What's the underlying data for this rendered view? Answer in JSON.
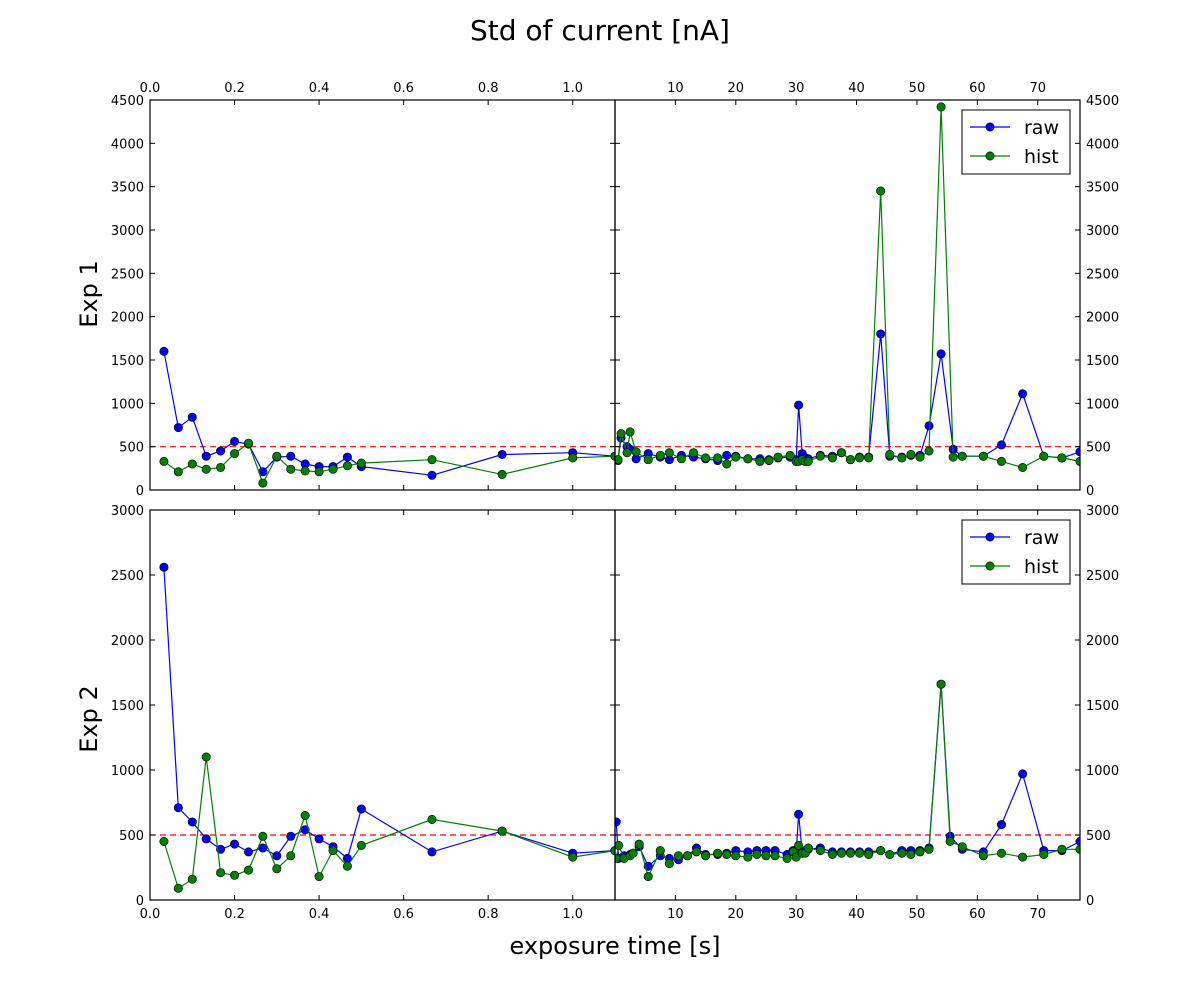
{
  "figure": {
    "suptitle": "Std of current [nA]",
    "xlabel": "exposure time [s]",
    "row_labels": [
      "Exp 1",
      "Exp 2"
    ]
  },
  "colors": {
    "raw": "#0000ff",
    "hist": "#008000",
    "ref": "#ff0000"
  },
  "chart_data": [
    {
      "type": "line",
      "id": "exp1-left",
      "xlim": [
        0,
        1.1
      ],
      "ylim": [
        0,
        4500
      ],
      "xticks": [
        0.0,
        0.2,
        0.4,
        0.6,
        0.8,
        1.0
      ],
      "xtick_labels": [
        "0.0",
        "0.2",
        "0.4",
        "0.6",
        "0.8",
        "1.0"
      ],
      "yticks": [
        0,
        500,
        1000,
        1500,
        2000,
        2500,
        3000,
        3500,
        4000,
        4500
      ],
      "ytick_labels": [
        "0",
        "500",
        "1000",
        "1500",
        "2000",
        "2500",
        "3000",
        "3500",
        "4000",
        "4500"
      ],
      "reference_line": 500,
      "series": [
        {
          "key": "raw",
          "x": [
            0.033,
            0.067,
            0.1,
            0.133,
            0.167,
            0.2,
            0.233,
            0.267,
            0.3,
            0.333,
            0.367,
            0.4,
            0.433,
            0.467,
            0.5,
            0.667,
            0.833,
            1.0,
            1.1
          ],
          "y": [
            1600,
            720,
            840,
            390,
            450,
            560,
            530,
            210,
            380,
            390,
            300,
            270,
            270,
            380,
            270,
            170,
            410,
            430,
            390
          ]
        },
        {
          "key": "hist",
          "x": [
            0.033,
            0.067,
            0.1,
            0.133,
            0.167,
            0.2,
            0.233,
            0.267,
            0.3,
            0.333,
            0.367,
            0.4,
            0.433,
            0.467,
            0.5,
            0.667,
            0.833,
            1.0,
            1.1
          ],
          "y": [
            330,
            210,
            300,
            240,
            260,
            420,
            540,
            80,
            390,
            240,
            220,
            210,
            240,
            280,
            310,
            350,
            180,
            370,
            390
          ]
        }
      ]
    },
    {
      "type": "line",
      "id": "exp1-right",
      "xlim": [
        0,
        77
      ],
      "ylim": [
        0,
        4500
      ],
      "xticks": [
        10,
        20,
        30,
        40,
        50,
        60,
        70
      ],
      "xtick_labels": [
        "10",
        "20",
        "30",
        "40",
        "50",
        "60",
        "70"
      ],
      "yticks": [
        0,
        500,
        1000,
        1500,
        2000,
        2500,
        3000,
        3500,
        4000,
        4500
      ],
      "ytick_labels": [
        "0",
        "500",
        "1000",
        "1500",
        "2000",
        "2500",
        "3000",
        "3500",
        "4000",
        "4500"
      ],
      "legend": [
        "raw",
        "hist"
      ],
      "legend_position": "top-right",
      "reference_line": 500,
      "series": [
        {
          "key": "raw",
          "x": [
            0.5,
            1,
            2,
            2.5,
            3.5,
            5.5,
            7.5,
            9,
            11,
            13,
            15,
            17,
            18.5,
            20,
            22,
            24,
            25.5,
            27,
            29,
            30,
            30.4,
            31,
            31.5,
            32,
            34,
            36,
            37.5,
            39,
            40.5,
            42,
            44,
            45.5,
            47.5,
            49,
            50.5,
            52,
            54,
            56,
            57.5,
            61,
            64,
            67.5,
            71,
            74,
            77
          ],
          "y": [
            340,
            600,
            500,
            470,
            360,
            420,
            380,
            350,
            400,
            380,
            360,
            340,
            400,
            390,
            360,
            360,
            350,
            370,
            380,
            350,
            980,
            420,
            370,
            360,
            400,
            390,
            430,
            350,
            380,
            380,
            1800,
            390,
            380,
            400,
            400,
            740,
            1570,
            470,
            390,
            390,
            520,
            1110,
            390,
            370,
            440
          ]
        },
        {
          "key": "hist",
          "x": [
            0.5,
            1,
            2,
            2.5,
            3.5,
            5.5,
            7.5,
            9,
            11,
            13,
            15,
            17,
            18.5,
            20,
            22,
            24,
            25.5,
            27,
            29,
            30,
            30.4,
            31,
            31.5,
            32,
            34,
            36,
            37.5,
            39,
            40.5,
            42,
            44,
            45.5,
            47.5,
            49,
            50.5,
            52,
            54,
            56,
            57.5,
            61,
            64,
            67.5,
            71,
            74,
            77
          ],
          "y": [
            350,
            650,
            430,
            670,
            440,
            350,
            400,
            430,
            360,
            430,
            370,
            370,
            300,
            380,
            360,
            330,
            340,
            380,
            400,
            330,
            330,
            350,
            330,
            330,
            390,
            370,
            430,
            350,
            370,
            370,
            3450,
            410,
            370,
            410,
            380,
            450,
            4420,
            380,
            390,
            390,
            330,
            260,
            390,
            370,
            330
          ]
        }
      ]
    },
    {
      "type": "line",
      "id": "exp2-left",
      "xlim": [
        0,
        1.1
      ],
      "ylim": [
        0,
        3000
      ],
      "xticks": [
        0.0,
        0.2,
        0.4,
        0.6,
        0.8,
        1.0
      ],
      "xtick_labels": [
        "0.0",
        "0.2",
        "0.4",
        "0.6",
        "0.8",
        "1.0"
      ],
      "yticks": [
        0,
        500,
        1000,
        1500,
        2000,
        2500,
        3000
      ],
      "ytick_labels": [
        "0",
        "500",
        "1000",
        "1500",
        "2000",
        "2500",
        "3000"
      ],
      "reference_line": 500,
      "series": [
        {
          "key": "raw",
          "x": [
            0.033,
            0.067,
            0.1,
            0.133,
            0.167,
            0.2,
            0.233,
            0.267,
            0.3,
            0.333,
            0.367,
            0.4,
            0.433,
            0.467,
            0.5,
            0.667,
            0.833,
            1.0,
            1.1
          ],
          "y": [
            2560,
            710,
            600,
            470,
            390,
            430,
            370,
            400,
            340,
            490,
            540,
            470,
            410,
            320,
            700,
            370,
            530,
            360,
            380
          ]
        },
        {
          "key": "hist",
          "x": [
            0.033,
            0.067,
            0.1,
            0.133,
            0.167,
            0.2,
            0.233,
            0.267,
            0.3,
            0.333,
            0.367,
            0.4,
            0.433,
            0.467,
            0.5,
            0.667,
            0.833,
            1.0,
            1.1
          ],
          "y": [
            450,
            90,
            160,
            1100,
            210,
            190,
            230,
            490,
            240,
            340,
            650,
            180,
            380,
            260,
            420,
            620,
            530,
            330,
            380
          ]
        }
      ]
    },
    {
      "type": "line",
      "id": "exp2-right",
      "xlim": [
        0,
        77
      ],
      "ylim": [
        0,
        3000
      ],
      "xticks": [
        0,
        10,
        20,
        30,
        40,
        50,
        60,
        70
      ],
      "xtick_labels": [
        "",
        "10",
        "20",
        "30",
        "40",
        "50",
        "60",
        "70"
      ],
      "yticks": [
        0,
        500,
        1000,
        1500,
        2000,
        2500,
        3000
      ],
      "ytick_labels": [
        "0",
        "500",
        "1000",
        "1500",
        "2000",
        "2500",
        "3000"
      ],
      "legend": [
        "raw",
        "hist"
      ],
      "legend_position": "top-right",
      "reference_line": 500,
      "series": [
        {
          "key": "raw",
          "x": [
            0.2,
            0.6,
            1.5,
            2.5,
            3,
            4,
            5.5,
            7.5,
            9,
            10.5,
            12,
            13.5,
            15,
            17,
            18.5,
            20,
            22,
            23.5,
            25,
            26.5,
            28.5,
            29.5,
            30,
            30.4,
            31,
            31.5,
            32,
            34,
            36,
            37.5,
            39,
            40.5,
            42,
            44,
            45.5,
            47.5,
            49,
            50.5,
            52,
            54,
            55.5,
            57.5,
            61,
            64,
            67.5,
            71,
            74,
            77
          ],
          "y": [
            600,
            320,
            340,
            350,
            360,
            410,
            260,
            340,
            320,
            310,
            340,
            400,
            350,
            350,
            360,
            380,
            370,
            380,
            380,
            380,
            350,
            380,
            360,
            660,
            370,
            380,
            390,
            400,
            370,
            370,
            370,
            370,
            370,
            380,
            350,
            380,
            380,
            380,
            400,
            1660,
            490,
            390,
            370,
            580,
            970,
            380,
            380,
            450
          ]
        },
        {
          "key": "hist",
          "x": [
            0.2,
            0.6,
            1.5,
            2.5,
            3,
            4,
            5.5,
            7.5,
            9,
            10.5,
            12,
            13.5,
            15,
            17,
            18.5,
            20,
            22,
            23.5,
            25,
            26.5,
            28.5,
            29.5,
            30,
            30.4,
            31,
            31.5,
            32,
            34,
            36,
            37.5,
            39,
            40.5,
            42,
            44,
            45.5,
            47.5,
            49,
            50.5,
            52,
            54,
            55.5,
            57.5,
            61,
            64,
            67.5,
            71,
            74,
            77
          ],
          "y": [
            320,
            420,
            320,
            340,
            360,
            430,
            180,
            380,
            280,
            340,
            340,
            370,
            340,
            360,
            350,
            340,
            330,
            350,
            340,
            340,
            320,
            370,
            330,
            420,
            360,
            360,
            400,
            380,
            350,
            360,
            360,
            360,
            350,
            380,
            350,
            360,
            350,
            370,
            390,
            1660,
            450,
            410,
            340,
            360,
            330,
            350,
            390,
            390
          ]
        }
      ]
    }
  ]
}
